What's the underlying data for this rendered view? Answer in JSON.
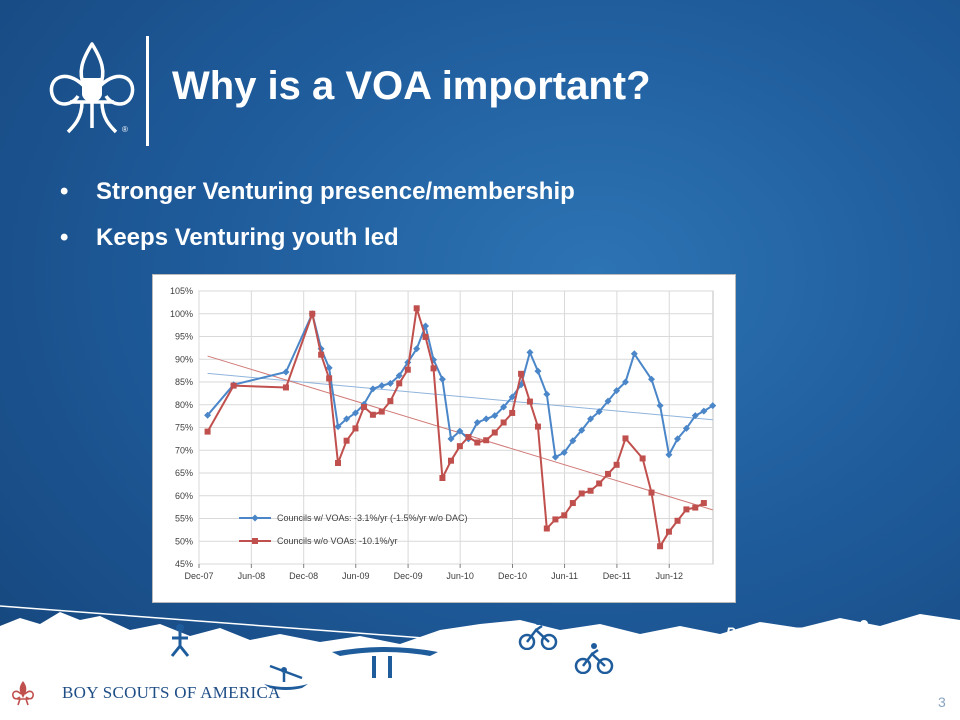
{
  "slide": {
    "title": "Why is a VOA important?",
    "bullets": [
      "Stronger Venturing presence/membership",
      "Keeps Venturing youth led"
    ],
    "bullet_char": "•",
    "footer_brand": "BOY SCOUTS OF AMERICA",
    "trademark": "®",
    "tagline": "Prepared. For Life.",
    "page_number": "3"
  },
  "colors": {
    "background": "#1f5c9c",
    "series1": "#4a86c8",
    "series2": "#c0504d",
    "trend1": "#8fb4dc",
    "trend2": "#d07a77"
  },
  "chart_data": {
    "type": "line",
    "y_tick_labels": [
      "45%",
      "50%",
      "55%",
      "60%",
      "65%",
      "70%",
      "75%",
      "80%",
      "85%",
      "90%",
      "95%",
      "100%",
      "105%"
    ],
    "x_tick_labels": [
      "Dec-07",
      "Jun-08",
      "Dec-08",
      "Jun-09",
      "Dec-09",
      "Jun-10",
      "Dec-10",
      "Jun-11",
      "Dec-11",
      "Jun-12"
    ],
    "ylim": [
      45,
      105
    ],
    "grid": true,
    "legend_position": "bottom-left",
    "series": [
      {
        "name": "Councils w/ VOAs: -3.1%/yr (-1.5%/yr w/o DAC)",
        "color": "#4a86c8",
        "marker": "diamond",
        "points": [
          [
            "2007-12-31",
            77.7
          ],
          [
            "2008-03-31",
            84.4
          ],
          [
            "2008-09-30",
            87.2
          ],
          [
            "2008-12-31",
            100.0
          ],
          [
            "2009-01-31",
            92.3
          ],
          [
            "2009-02-28",
            88.1
          ],
          [
            "2009-03-31",
            75.2
          ],
          [
            "2009-04-30",
            76.9
          ],
          [
            "2009-05-31",
            78.2
          ],
          [
            "2009-06-30",
            80.1
          ],
          [
            "2009-07-31",
            83.5
          ],
          [
            "2009-08-31",
            84.2
          ],
          [
            "2009-09-30",
            84.7
          ],
          [
            "2009-10-31",
            86.4
          ],
          [
            "2009-11-30",
            89.3
          ],
          [
            "2009-12-31",
            92.3
          ],
          [
            "2010-01-31",
            97.3
          ],
          [
            "2010-02-28",
            89.9
          ],
          [
            "2010-03-31",
            85.6
          ],
          [
            "2010-04-30",
            72.5
          ],
          [
            "2010-05-31",
            74.2
          ],
          [
            "2010-06-30",
            72.5
          ],
          [
            "2010-07-31",
            76.1
          ],
          [
            "2010-08-31",
            76.9
          ],
          [
            "2010-09-30",
            77.6
          ],
          [
            "2010-10-31",
            79.5
          ],
          [
            "2010-11-30",
            81.7
          ],
          [
            "2010-12-31",
            84.4
          ],
          [
            "2011-01-31",
            91.5
          ],
          [
            "2011-02-28",
            87.4
          ],
          [
            "2011-03-31",
            82.3
          ],
          [
            "2011-04-30",
            68.5
          ],
          [
            "2011-05-31",
            69.5
          ],
          [
            "2011-06-30",
            72.1
          ],
          [
            "2011-07-31",
            74.4
          ],
          [
            "2011-08-31",
            76.9
          ],
          [
            "2011-09-30",
            78.5
          ],
          [
            "2011-10-31",
            80.8
          ],
          [
            "2011-11-30",
            83.1
          ],
          [
            "2011-12-31",
            85.0
          ],
          [
            "2012-01-31",
            91.2
          ],
          [
            "2012-03-31",
            85.6
          ],
          [
            "2012-04-30",
            79.8
          ],
          [
            "2012-05-31",
            69.0
          ],
          [
            "2012-06-30",
            72.5
          ],
          [
            "2012-07-31",
            74.8
          ],
          [
            "2012-08-31",
            77.6
          ],
          [
            "2012-09-30",
            78.6
          ],
          [
            "2012-10-31",
            79.8
          ]
        ]
      },
      {
        "name": "Councils w/o VOAs: -10.1%/yr",
        "color": "#c0504d",
        "marker": "square",
        "points": [
          [
            "2007-12-31",
            74.1
          ],
          [
            "2008-03-31",
            84.2
          ],
          [
            "2008-09-30",
            83.8
          ],
          [
            "2008-12-31",
            100.0
          ],
          [
            "2009-01-31",
            91.0
          ],
          [
            "2009-02-28",
            85.8
          ],
          [
            "2009-03-31",
            67.2
          ],
          [
            "2009-04-30",
            72.1
          ],
          [
            "2009-05-31",
            74.8
          ],
          [
            "2009-06-30",
            79.5
          ],
          [
            "2009-07-31",
            77.8
          ],
          [
            "2009-08-31",
            78.5
          ],
          [
            "2009-09-30",
            80.8
          ],
          [
            "2009-10-31",
            84.7
          ],
          [
            "2009-11-30",
            87.7
          ],
          [
            "2009-12-31",
            101.2
          ],
          [
            "2010-01-31",
            94.9
          ],
          [
            "2010-02-28",
            88.0
          ],
          [
            "2010-03-31",
            63.9
          ],
          [
            "2010-04-30",
            67.7
          ],
          [
            "2010-05-31",
            70.9
          ],
          [
            "2010-06-30",
            72.9
          ],
          [
            "2010-07-31",
            71.7
          ],
          [
            "2010-08-31",
            72.2
          ],
          [
            "2010-09-30",
            73.9
          ],
          [
            "2010-10-31",
            76.1
          ],
          [
            "2010-11-30",
            78.2
          ],
          [
            "2010-12-31",
            86.8
          ],
          [
            "2011-01-31",
            80.7
          ],
          [
            "2011-02-28",
            75.2
          ],
          [
            "2011-03-31",
            52.8
          ],
          [
            "2011-04-30",
            54.8
          ],
          [
            "2011-05-31",
            55.7
          ],
          [
            "2011-06-30",
            58.4
          ],
          [
            "2011-07-31",
            60.5
          ],
          [
            "2011-08-31",
            61.1
          ],
          [
            "2011-09-30",
            62.7
          ],
          [
            "2011-10-31",
            64.8
          ],
          [
            "2011-11-30",
            66.8
          ],
          [
            "2011-12-31",
            72.6
          ],
          [
            "2012-02-29",
            68.2
          ],
          [
            "2012-03-31",
            60.7
          ],
          [
            "2012-04-30",
            48.9
          ],
          [
            "2012-05-31",
            52.1
          ],
          [
            "2012-06-30",
            54.5
          ],
          [
            "2012-07-31",
            57.0
          ],
          [
            "2012-08-31",
            57.4
          ],
          [
            "2012-09-30",
            58.4
          ]
        ]
      }
    ],
    "trendlines": [
      {
        "series": 0,
        "points": [
          [
            "2007-12-31",
            86.9
          ],
          [
            "2012-10-31",
            76.7
          ]
        ],
        "color": "#8fb4dc"
      },
      {
        "series": 1,
        "points": [
          [
            "2007-12-31",
            90.7
          ],
          [
            "2012-10-31",
            56.9
          ]
        ],
        "color": "#d07a77"
      }
    ]
  }
}
